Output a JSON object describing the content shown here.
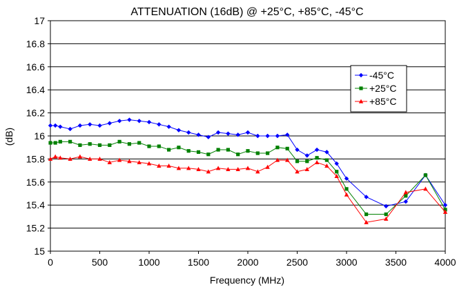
{
  "chart_data": {
    "type": "line",
    "title": "ATTENUATION (16dB) @ +25°C, +85°C, -45°C",
    "xlabel": "Frequency (MHz)",
    "ylabel": "(dB)",
    "xlim": [
      0,
      4000
    ],
    "ylim": [
      15,
      17
    ],
    "x_ticks": [
      "0",
      "500",
      "1000",
      "1500",
      "2000",
      "2500",
      "3000",
      "3500",
      "4000"
    ],
    "y_ticks": [
      "15",
      "15.2",
      "15.4",
      "15.6",
      "15.8",
      "16",
      "16.2",
      "16.4",
      "16.6",
      "16.8",
      "17"
    ],
    "grid": "horizontal",
    "legend_position": "right",
    "x": [
      0,
      50,
      100,
      200,
      300,
      400,
      500,
      600,
      700,
      800,
      900,
      1000,
      1100,
      1200,
      1300,
      1400,
      1500,
      1600,
      1700,
      1800,
      1900,
      2000,
      2100,
      2200,
      2300,
      2400,
      2500,
      2600,
      2700,
      2800,
      2900,
      3000,
      3200,
      3400,
      3600,
      3800,
      4000
    ],
    "series": [
      {
        "name": "-45°C",
        "color": "#0000ff",
        "marker": "diamond",
        "values": [
          16.09,
          16.09,
          16.08,
          16.06,
          16.09,
          16.1,
          16.09,
          16.11,
          16.13,
          16.14,
          16.13,
          16.12,
          16.1,
          16.08,
          16.05,
          16.03,
          16.01,
          15.99,
          16.03,
          16.02,
          16.01,
          16.03,
          16.0,
          16.0,
          16.0,
          16.01,
          15.88,
          15.83,
          15.88,
          15.86,
          15.76,
          15.63,
          15.47,
          15.39,
          15.43,
          15.66,
          15.4
        ]
      },
      {
        "name": "+25°C",
        "color": "#008000",
        "marker": "square",
        "values": [
          15.94,
          15.94,
          15.95,
          15.95,
          15.92,
          15.93,
          15.92,
          15.92,
          15.95,
          15.93,
          15.94,
          15.91,
          15.91,
          15.88,
          15.9,
          15.87,
          15.86,
          15.84,
          15.88,
          15.88,
          15.84,
          15.87,
          15.85,
          15.85,
          15.9,
          15.89,
          15.78,
          15.78,
          15.81,
          15.79,
          15.69,
          15.54,
          15.32,
          15.32,
          15.48,
          15.66,
          15.36
        ]
      },
      {
        "name": "+85°C",
        "color": "#ff0000",
        "marker": "triangle",
        "values": [
          15.8,
          15.82,
          15.81,
          15.8,
          15.82,
          15.8,
          15.8,
          15.77,
          15.79,
          15.78,
          15.77,
          15.76,
          15.74,
          15.74,
          15.72,
          15.72,
          15.71,
          15.69,
          15.72,
          15.71,
          15.71,
          15.72,
          15.69,
          15.73,
          15.79,
          15.79,
          15.69,
          15.71,
          15.77,
          15.74,
          15.65,
          15.49,
          15.25,
          15.28,
          15.51,
          15.54,
          15.34
        ]
      }
    ]
  }
}
